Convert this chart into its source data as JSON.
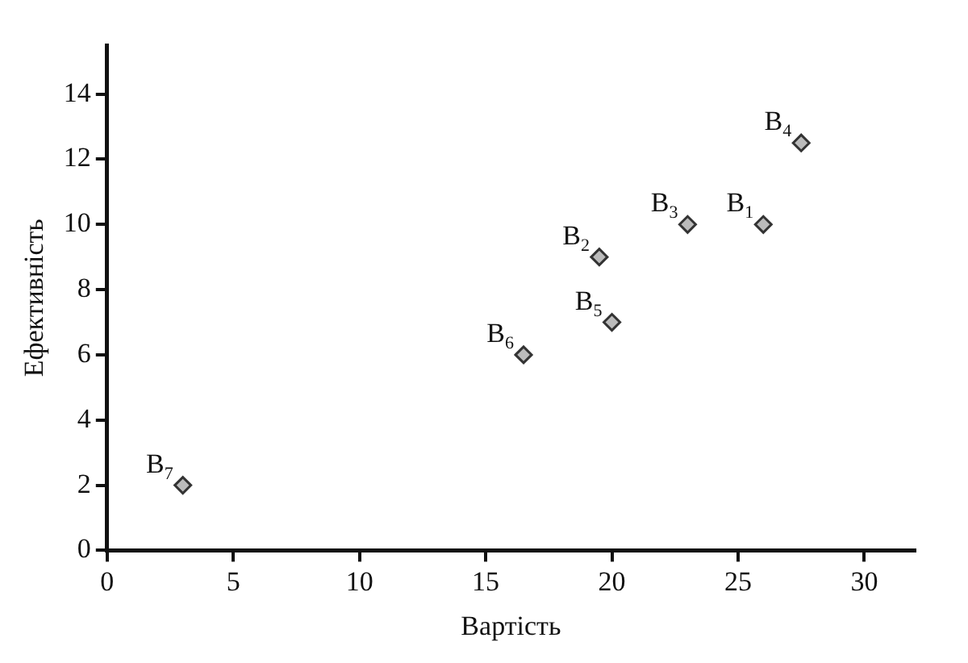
{
  "chart_data": {
    "type": "scatter",
    "xlabel": "Вартість",
    "ylabel": "Ефективність",
    "x": [
      26,
      19.5,
      23,
      27.5,
      20,
      16.5,
      3
    ],
    "series": [
      {
        "color": "#333333",
        "values": [
          10,
          9,
          10,
          12.5,
          7,
          6,
          2
        ]
      }
    ],
    "xlim": [
      0,
      32
    ],
    "ylim": [
      0,
      15.5
    ],
    "xticks": [
      0,
      5,
      10,
      15,
      20,
      25,
      30
    ],
    "yticks": [
      0,
      2,
      4,
      6,
      8,
      10,
      12,
      14
    ],
    "grid": false,
    "legend": false,
    "marker": "diamond",
    "annotations": [
      {
        "text": "B$_{1}$",
        "x": 26,
        "y": 10
      },
      {
        "text": "B$_{2}$",
        "x": 19.5,
        "y": 9
      },
      {
        "text": "B$_{3}$",
        "x": 23,
        "y": 10
      },
      {
        "text": "B$_{4}$",
        "x": 27.5,
        "y": 12.5
      },
      {
        "text": "B$_{5}$",
        "x": 20,
        "y": 7
      },
      {
        "text": "B$_{6}$",
        "x": 16.5,
        "y": 6
      },
      {
        "text": "B$_{7}$",
        "x": 3,
        "y": 2
      }
    ]
  }
}
